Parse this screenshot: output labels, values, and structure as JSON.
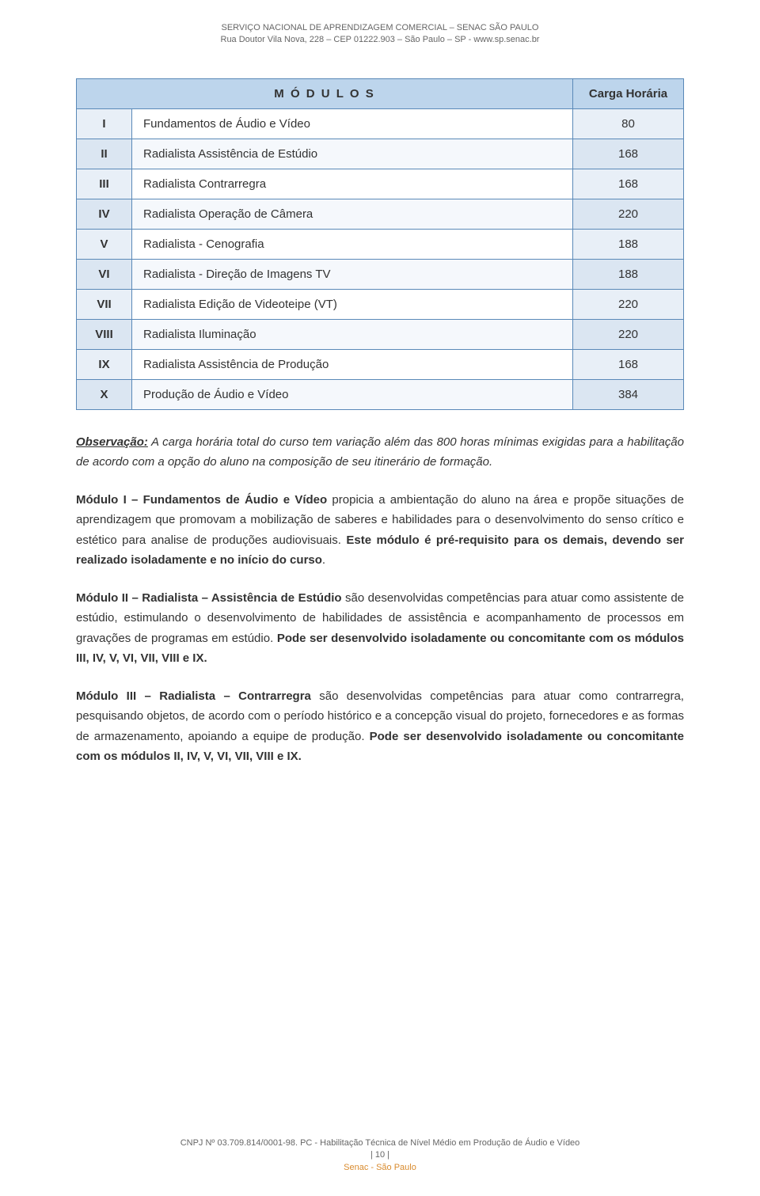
{
  "header": {
    "line1": "SERVIÇO NACIONAL DE APRENDIZAGEM COMERCIAL – SENAC SÃO PAULO",
    "line2": "Rua Doutor Vila Nova, 228 – CEP 01222.903 – São Paulo – SP - www.sp.senac.br"
  },
  "table": {
    "header_modulos": "M Ó D U L O S",
    "header_carga": "Carga Horária",
    "rows": [
      {
        "num": "I",
        "desc": "Fundamentos de Áudio e Vídeo",
        "hours": "80"
      },
      {
        "num": "II",
        "desc": "Radialista Assistência de Estúdio",
        "hours": "168"
      },
      {
        "num": "III",
        "desc": "Radialista Contrarregra",
        "hours": "168"
      },
      {
        "num": "IV",
        "desc": "Radialista Operação de Câmera",
        "hours": "220"
      },
      {
        "num": "V",
        "desc": "Radialista - Cenografia",
        "hours": "188"
      },
      {
        "num": "VI",
        "desc": "Radialista - Direção de Imagens TV",
        "hours": "188"
      },
      {
        "num": "VII",
        "desc": "Radialista Edição de Videoteipe (VT)",
        "hours": "220"
      },
      {
        "num": "VIII",
        "desc": "Radialista Iluminação",
        "hours": "220"
      },
      {
        "num": "IX",
        "desc": "Radialista Assistência de Produção",
        "hours": "168"
      },
      {
        "num": "X",
        "desc": "Produção de Áudio e Vídeo",
        "hours": "384"
      }
    ]
  },
  "paragraphs": {
    "obs_label": "Observação:",
    "obs_text": " A carga horária total do curso tem variação além das 800 horas mínimas exigidas para a habilitação de acordo com a opção do aluno na composição de seu itinerário de formação.",
    "m1_lead": "Módulo I – Fundamentos de Áudio e Vídeo",
    "m1_body": " propicia a ambientação do aluno na área e propõe situações de aprendizagem que promovam a mobilização de saberes e habilidades para o desenvolvimento do senso crítico e estético para analise de produções audiovisuais. ",
    "m1_strong": "Este módulo é pré-requisito para os demais, devendo ser realizado isoladamente e no início do curso",
    "m1_period": ".",
    "m2_lead": "Módulo II – Radialista – Assistência de Estúdio",
    "m2_body": " são desenvolvidas competências para atuar como assistente de estúdio, estimulando o desenvolvimento de habilidades de assistência e acompanhamento de processos em gravações de programas em estúdio. ",
    "m2_strong": "Pode ser desenvolvido isoladamente ou concomitante com os módulos III, IV, V, VI, VII, VIII e IX.",
    "m3_lead": "Módulo III – Radialista – Contrarregra",
    "m3_body": " são desenvolvidas competências para atuar como contrarregra, pesquisando objetos, de acordo com o período histórico e a concepção visual do projeto, fornecedores e as formas de armazenamento, apoiando a equipe de produção. ",
    "m3_strong": "Pode ser desenvolvido isoladamente ou concomitante com os módulos II, IV, V, VI, VII, VIII e IX."
  },
  "footer": {
    "line1": "CNPJ Nº 03.709.814/0001-98. PC - Habilitação Técnica de Nível Médio em Produção de Áudio e Vídeo",
    "page": "| 10 |",
    "org": "Senac - São Paulo"
  }
}
